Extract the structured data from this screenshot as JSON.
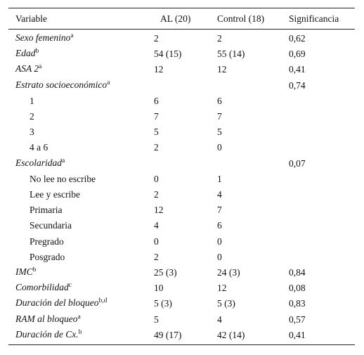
{
  "header": [
    "Variable",
    "AL (20)",
    "Control (18)",
    "Significancia"
  ],
  "rows": [
    {
      "label": "Sexo femenino",
      "sup": "a",
      "al": "2",
      "control": "2",
      "sig": "0,62"
    },
    {
      "label": "Edad",
      "sup": "b",
      "al": "54 (15)",
      "control": "55 (14)",
      "sig": "0,69"
    },
    {
      "label": "ASA 2",
      "sup": "a",
      "al": "12",
      "control": "12",
      "sig": "0,41"
    },
    {
      "label": "Estrato socioeconómico",
      "sup": "a",
      "sig": "0,74"
    },
    {
      "label": "1",
      "al": "6",
      "control": "6"
    },
    {
      "label": "2",
      "al": "7",
      "control": "7"
    },
    {
      "label": "3",
      "al": "5",
      "control": "5"
    },
    {
      "label": "4 a 6",
      "al": "2",
      "control": "0"
    },
    {
      "label": "Escolaridad",
      "sup": "a",
      "sig": "0,07"
    },
    {
      "label": "No lee no escribe",
      "al": "0",
      "control": "1"
    },
    {
      "label": "Lee y escribe",
      "al": "2",
      "control": "4"
    },
    {
      "label": "Primaria",
      "al": "12",
      "control": "7"
    },
    {
      "label": "Secundaria",
      "al": "4",
      "control": "6"
    },
    {
      "label": "Pregrado",
      "al": "0",
      "control": "0"
    },
    {
      "label": "Posgrado",
      "al": "2",
      "control": "0"
    },
    {
      "label": "IMC",
      "sup": "b",
      "al": "25 (3)",
      "control": "24 (3)",
      "sig": "0,84"
    },
    {
      "label": "Comorbilidad",
      "sup": "c",
      "al": "10",
      "control": "12",
      "sig": "0,08"
    },
    {
      "label": "Duración del bloqueo",
      "sup": "b,d",
      "al": "5 (3)",
      "control": "5 (3)",
      "sig": "0,83"
    },
    {
      "label": "RAM al bloqueo",
      "sup": "a",
      "al": "5",
      "control": "4",
      "sig": "0,57"
    },
    {
      "label": "Duración de Cx.",
      "sup": "b",
      "al": "49 (17)",
      "control": "42 (14)",
      "sig": "0,41"
    }
  ]
}
